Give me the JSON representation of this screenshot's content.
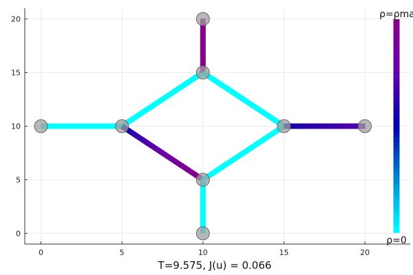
{
  "chart_data": {
    "type": "network",
    "caption": "T=9.575,    J(u) = 0.066",
    "xlim": [
      -1,
      22.8
    ],
    "ylim": [
      -1,
      21
    ],
    "xticks": [
      "0",
      "5",
      "10",
      "15",
      "20"
    ],
    "yticks": [
      "0",
      "5",
      "10",
      "15",
      "20"
    ],
    "grid": true,
    "nodes": [
      {
        "x": 0,
        "y": 10
      },
      {
        "x": 5,
        "y": 10
      },
      {
        "x": 10,
        "y": 20
      },
      {
        "x": 10,
        "y": 15
      },
      {
        "x": 10,
        "y": 5
      },
      {
        "x": 10,
        "y": 0
      },
      {
        "x": 15,
        "y": 10
      },
      {
        "x": 20,
        "y": 10
      }
    ],
    "edges": [
      {
        "from": [
          0,
          10
        ],
        "to": [
          5,
          10
        ],
        "density": 0.0
      },
      {
        "from": [
          5,
          10
        ],
        "to": [
          10,
          15
        ],
        "density": 0.0
      },
      {
        "from": [
          5,
          10
        ],
        "to": [
          10,
          5
        ],
        "density": [
          0.55,
          1.0
        ]
      },
      {
        "from": [
          10,
          15
        ],
        "to": [
          10,
          20
        ],
        "density": 1.0
      },
      {
        "from": [
          10,
          15
        ],
        "to": [
          15,
          10
        ],
        "density": 0.0
      },
      {
        "from": [
          10,
          5
        ],
        "to": [
          15,
          10
        ],
        "density": 0.0
      },
      {
        "from": [
          10,
          0
        ],
        "to": [
          10,
          5
        ],
        "density": 0.0
      },
      {
        "from": [
          15,
          10
        ],
        "to": [
          20,
          10
        ],
        "density": [
          0.55,
          0.72
        ]
      }
    ],
    "colorbar": {
      "top_label": "ρ=ρma",
      "bottom_label": "ρ=0",
      "colors": [
        "#00ffff",
        "#0088cc",
        "#0000aa",
        "#6600aa",
        "#880088"
      ]
    }
  }
}
